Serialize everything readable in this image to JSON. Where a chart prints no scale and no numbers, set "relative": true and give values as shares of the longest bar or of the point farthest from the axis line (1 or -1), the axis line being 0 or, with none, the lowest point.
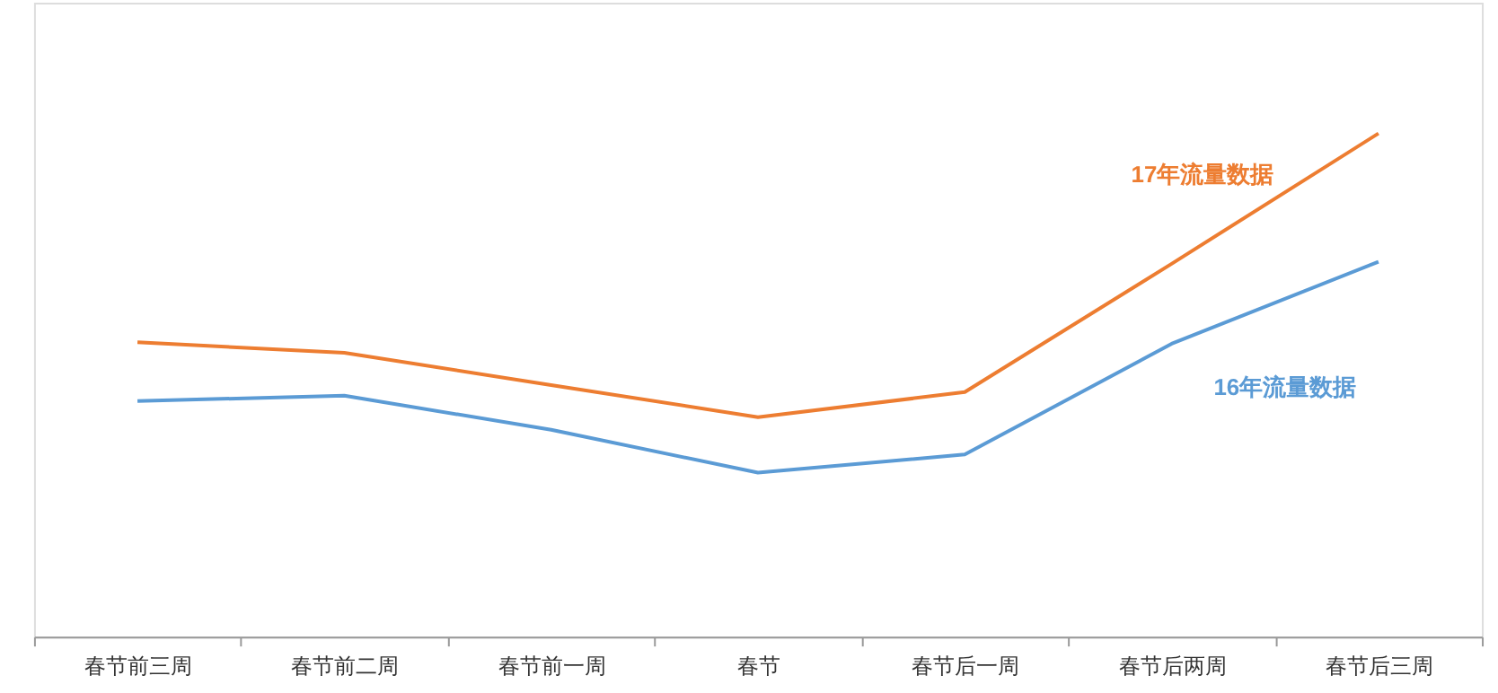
{
  "chart_data": {
    "type": "line",
    "relative": true,
    "categories": [
      "春节前三周",
      "春节前二周",
      "春节前一周",
      "春节",
      "春节后一周",
      "春节后两周",
      "春节后三周"
    ],
    "series": [
      {
        "name": "17年流量数据",
        "color": "#ed7d31",
        "values": [
          0.585,
          0.564,
          0.5,
          0.436,
          0.486,
          0.741,
          1.0
        ]
      },
      {
        "name": "16年流量数据",
        "color": "#5b9bd5",
        "values": [
          0.468,
          0.479,
          0.411,
          0.326,
          0.362,
          0.582,
          0.745
        ]
      }
    ],
    "grid": false,
    "legend": false
  }
}
